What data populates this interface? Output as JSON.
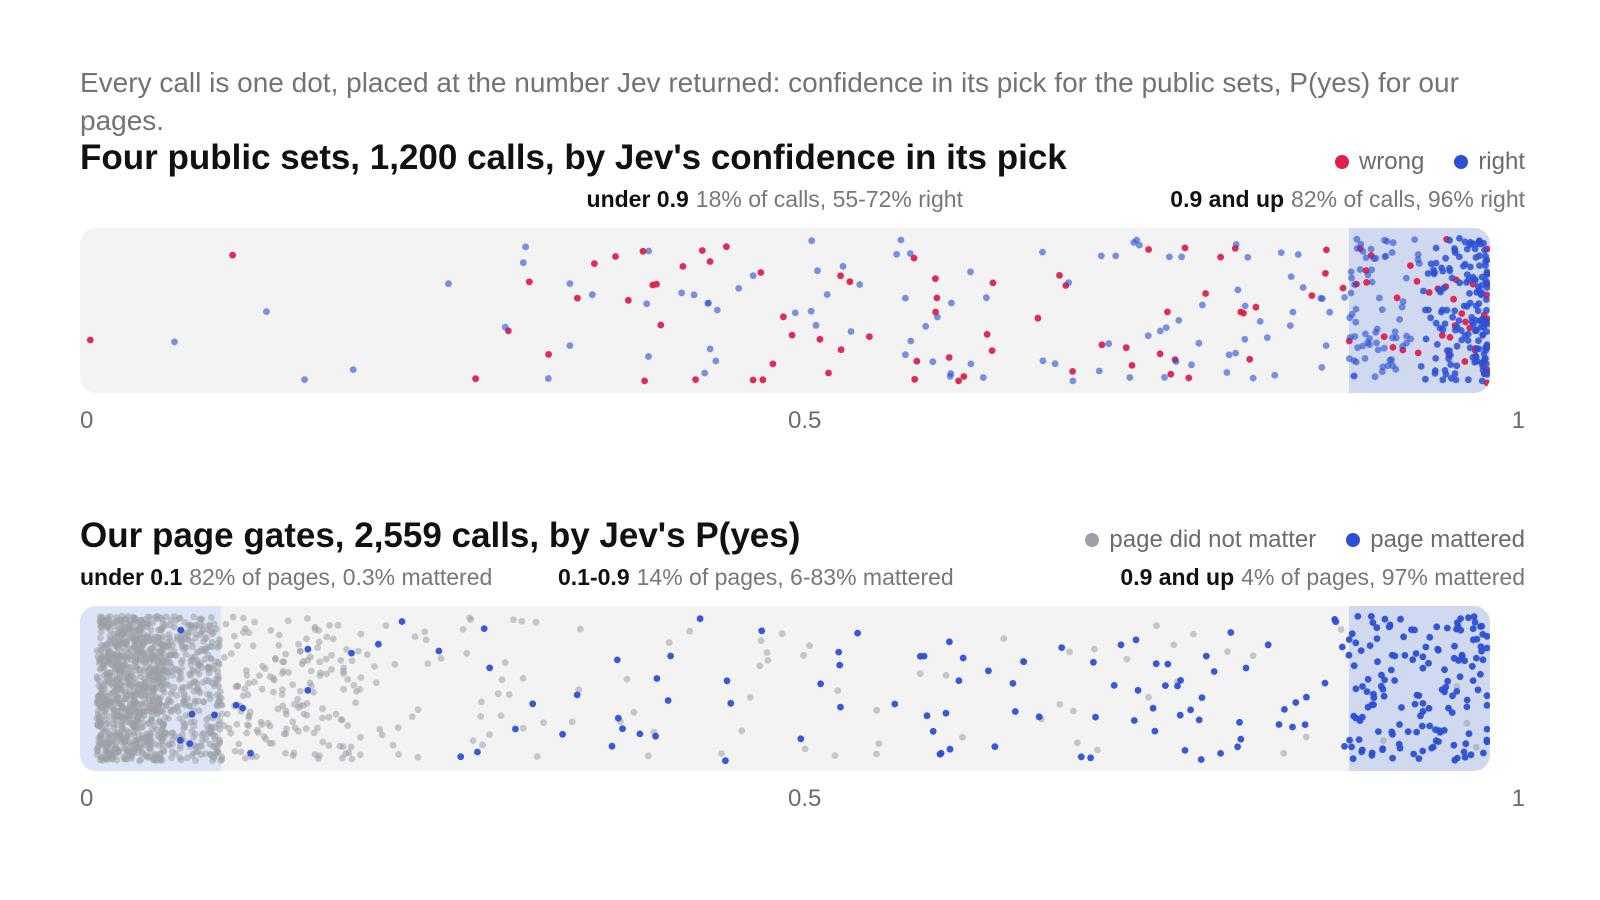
{
  "intro": "Every call is one dot, placed at the number Jev returned: confidence in its pick for the public sets, P(yes) for our pages.",
  "colors": {
    "wrong": "#e0204a",
    "right": "#2b50d6",
    "not_matter": "#9ca0a6",
    "mattered": "#2b50d6",
    "strip_bg": "#f3f3f3",
    "zone_shade": "#d0d9ef"
  },
  "chart_data": [
    {
      "type": "strip",
      "title": "Four public sets, 1,200 calls, by Jev's confidence in its pick",
      "total_calls": 1200,
      "x_range": [
        0,
        1
      ],
      "ticks": [
        "0",
        "0.5",
        "1"
      ],
      "legend": [
        {
          "label": "wrong",
          "color": "#e0204a"
        },
        {
          "label": "right",
          "color": "#2b50d6"
        }
      ],
      "legend_position": "top-right",
      "bands": [
        {
          "range": [
            0,
            0.9
          ],
          "label": "under 0.9",
          "text": "18% of calls, 55-72% right",
          "shaded": false
        },
        {
          "range": [
            0.9,
            1.0
          ],
          "label": "0.9 and up",
          "text": "82% of calls, 96% right",
          "shaded": true
        }
      ],
      "series": [
        {
          "name": "wrong",
          "color": "#e0204a",
          "groups": [
            [
              0.0,
              0.1,
              1
            ],
            [
              0.1,
              0.3,
              2
            ],
            [
              0.3,
              0.5,
              22
            ],
            [
              0.5,
              0.7,
              22
            ],
            [
              0.7,
              0.9,
              22
            ],
            [
              0.9,
              0.95,
              13
            ],
            [
              0.95,
              1.0,
              27
            ]
          ]
        },
        {
          "name": "right",
          "color": "#2b50d6",
          "groups": [
            [
              0.0,
              0.1,
              1
            ],
            [
              0.1,
              0.3,
              4
            ],
            [
              0.3,
              0.5,
              20
            ],
            [
              0.5,
              0.7,
              28
            ],
            [
              0.7,
              0.9,
              45
            ],
            [
              0.9,
              0.95,
              70
            ],
            [
              0.95,
              1.0,
              160
            ]
          ]
        }
      ]
    },
    {
      "type": "strip",
      "title": "Our page gates, 2,559 calls, by Jev's P(yes)",
      "total_calls": 2559,
      "x_range": [
        0,
        1
      ],
      "ticks": [
        "0",
        "0.5",
        "1"
      ],
      "legend": [
        {
          "label": "page did not matter",
          "color": "#9ca0a6"
        },
        {
          "label": "page mattered",
          "color": "#2b50d6"
        }
      ],
      "legend_position": "top-right",
      "bands": [
        {
          "range": [
            0,
            0.1
          ],
          "label": "under 0.1",
          "text": "82% of pages, 0.3% mattered",
          "shaded": true
        },
        {
          "range": [
            0.1,
            0.9
          ],
          "label": "0.1-0.9",
          "text": "14% of pages, 6-83% mattered",
          "shaded": false
        },
        {
          "range": [
            0.9,
            1.0
          ],
          "label": "0.9 and up",
          "text": "4% of pages, 97% mattered",
          "shaded": true
        }
      ],
      "series": [
        {
          "name": "page did not matter",
          "color": "#9ca0a6",
          "groups": [
            [
              0.012,
              0.06,
              900
            ],
            [
              0.06,
              0.1,
              300
            ],
            [
              0.1,
              0.2,
              170
            ],
            [
              0.2,
              0.35,
              40
            ],
            [
              0.35,
              0.55,
              22
            ],
            [
              0.55,
              0.75,
              16
            ],
            [
              0.75,
              0.9,
              10
            ],
            [
              0.9,
              1.0,
              4
            ]
          ]
        },
        {
          "name": "page mattered",
          "color": "#2b50d6",
          "groups": [
            [
              0.05,
              0.1,
              5
            ],
            [
              0.1,
              0.2,
              6
            ],
            [
              0.2,
              0.35,
              10
            ],
            [
              0.35,
              0.55,
              20
            ],
            [
              0.55,
              0.75,
              28
            ],
            [
              0.75,
              0.9,
              35
            ],
            [
              0.9,
              1.0,
              150
            ]
          ]
        }
      ]
    }
  ]
}
